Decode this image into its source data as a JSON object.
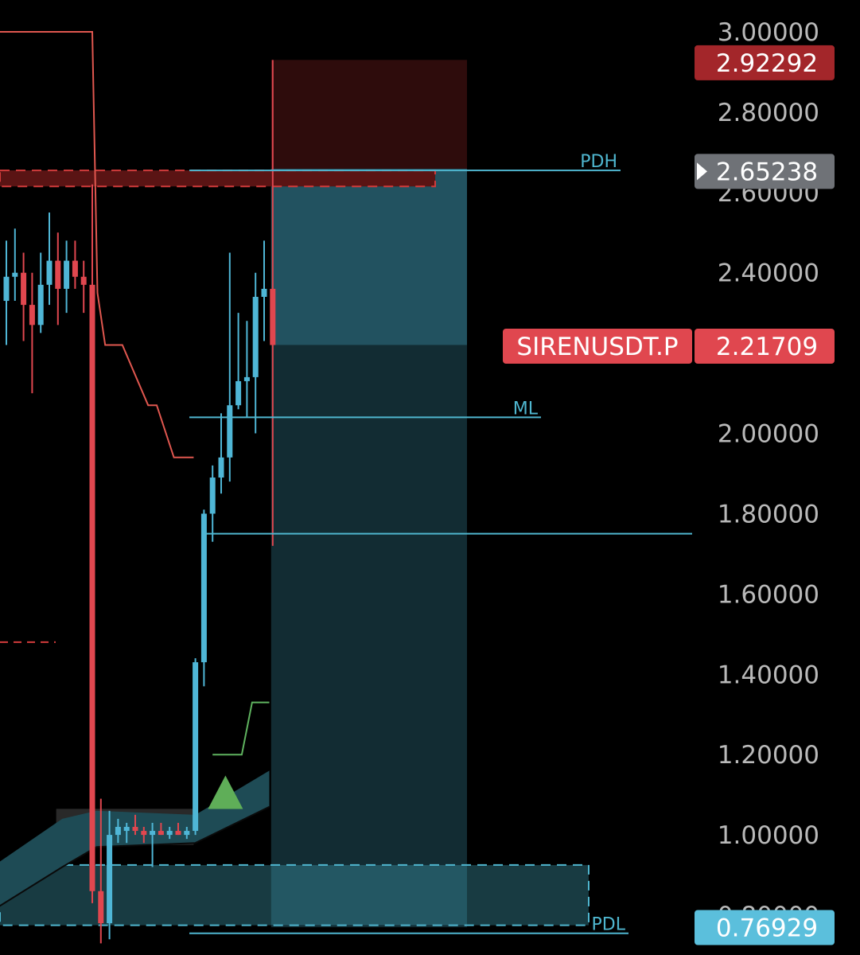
{
  "chart_data": {
    "type": "candlestick",
    "symbol": "SIRENUSDT.P",
    "y_axis": {
      "ticks": [
        "3.00000",
        "2.80000",
        "2.60000",
        "2.40000",
        "2.00000",
        "1.80000",
        "1.60000",
        "1.40000",
        "1.20000",
        "1.00000",
        "0.80000"
      ],
      "range": [
        0.72,
        3.06
      ]
    },
    "price_tags": [
      {
        "label": "2.92292",
        "value": 2.92292,
        "color": "#a3262a"
      },
      {
        "label": "2.65238",
        "value": 2.65238,
        "color": "#6f7277"
      },
      {
        "label": "2.21709",
        "value": 2.21709,
        "color": "#e0474f"
      },
      {
        "label": "0.76929",
        "value": 0.76929,
        "color": "#5bbfdc"
      }
    ],
    "current_symbol_tag": "SIRENUSDT.P",
    "levels": [
      {
        "label": "PDH",
        "value": 2.655
      },
      {
        "label": "ML",
        "value": 2.04
      },
      {
        "label": "PDL",
        "value": 0.755
      }
    ],
    "extra_level": 1.75,
    "position": {
      "entry": 2.22,
      "stop": 2.93,
      "target": 0.77
    },
    "red_zone": {
      "top": 2.655,
      "bottom": 2.615
    },
    "blue_zone": {
      "top": 0.925,
      "bottom": 0.775
    },
    "candles": [
      {
        "o": 2.33,
        "h": 2.48,
        "l": 2.22,
        "c": 2.39
      },
      {
        "o": 2.39,
        "h": 2.51,
        "l": 2.33,
        "c": 2.4
      },
      {
        "o": 2.4,
        "h": 2.45,
        "l": 2.23,
        "c": 2.32
      },
      {
        "o": 2.32,
        "h": 2.4,
        "l": 2.1,
        "c": 2.27
      },
      {
        "o": 2.27,
        "h": 2.45,
        "l": 2.25,
        "c": 2.37
      },
      {
        "o": 2.37,
        "h": 2.55,
        "l": 2.32,
        "c": 2.43
      },
      {
        "o": 2.43,
        "h": 2.5,
        "l": 2.27,
        "c": 2.36
      },
      {
        "o": 2.36,
        "h": 2.48,
        "l": 2.3,
        "c": 2.43
      },
      {
        "o": 2.43,
        "h": 2.48,
        "l": 2.36,
        "c": 2.39
      },
      {
        "o": 2.39,
        "h": 2.43,
        "l": 2.3,
        "c": 2.37
      },
      {
        "o": 2.37,
        "h": 2.62,
        "l": 0.83,
        "c": 0.86
      },
      {
        "o": 0.86,
        "h": 1.09,
        "l": 0.73,
        "c": 0.78
      },
      {
        "o": 0.78,
        "h": 1.06,
        "l": 0.74,
        "c": 1.0
      },
      {
        "o": 1.0,
        "h": 1.04,
        "l": 0.98,
        "c": 1.02
      },
      {
        "o": 1.01,
        "h": 1.03,
        "l": 0.98,
        "c": 1.02
      },
      {
        "o": 1.02,
        "h": 1.05,
        "l": 1.0,
        "c": 1.01
      },
      {
        "o": 1.01,
        "h": 1.02,
        "l": 0.98,
        "c": 1.0
      },
      {
        "o": 1.0,
        "h": 1.03,
        "l": 0.92,
        "c": 1.01
      },
      {
        "o": 1.01,
        "h": 1.03,
        "l": 1.0,
        "c": 1.0
      },
      {
        "o": 1.0,
        "h": 1.02,
        "l": 0.99,
        "c": 1.01
      },
      {
        "o": 1.01,
        "h": 1.03,
        "l": 1.0,
        "c": 1.0
      },
      {
        "o": 1.0,
        "h": 1.02,
        "l": 0.99,
        "c": 1.01
      },
      {
        "o": 1.01,
        "h": 1.44,
        "l": 1.0,
        "c": 1.43
      },
      {
        "o": 1.43,
        "h": 1.81,
        "l": 1.37,
        "c": 1.8
      },
      {
        "o": 1.8,
        "h": 1.92,
        "l": 1.73,
        "c": 1.89
      },
      {
        "o": 1.89,
        "h": 2.05,
        "l": 1.85,
        "c": 1.94
      },
      {
        "o": 1.94,
        "h": 2.45,
        "l": 1.88,
        "c": 2.07
      },
      {
        "o": 2.07,
        "h": 2.3,
        "l": 2.06,
        "c": 2.13
      },
      {
        "o": 2.13,
        "h": 2.28,
        "l": 2.04,
        "c": 2.14
      },
      {
        "o": 2.14,
        "h": 2.4,
        "l": 2.0,
        "c": 2.34
      },
      {
        "o": 2.34,
        "h": 2.48,
        "l": 2.23,
        "c": 2.36
      },
      {
        "o": 2.36,
        "h": 2.93,
        "l": 1.72,
        "c": 2.22
      }
    ],
    "supertrend_red": [
      {
        "i": -1,
        "v": 3.0
      },
      {
        "i": 10,
        "v": 3.0
      },
      {
        "i": 10.6,
        "v": 2.35
      },
      {
        "i": 11.5,
        "v": 2.22
      },
      {
        "i": 13.5,
        "v": 2.22
      },
      {
        "i": 16.5,
        "v": 2.07
      },
      {
        "i": 17.5,
        "v": 2.07
      },
      {
        "i": 19.5,
        "v": 1.94
      },
      {
        "i": 21.8,
        "v": 1.94
      }
    ],
    "green_line": [
      {
        "i": 24.0,
        "v": 1.2
      },
      {
        "i": 27.4,
        "v": 1.2
      },
      {
        "i": 28.6,
        "v": 1.33
      },
      {
        "i": 30.6,
        "v": 1.33
      }
    ],
    "ribbon_top": [
      {
        "i": -1,
        "v": 0.93
      },
      {
        "i": 6.5,
        "v": 1.04
      },
      {
        "i": 10.5,
        "v": 1.06
      },
      {
        "i": 22.0,
        "v": 1.05
      },
      {
        "i": 30.6,
        "v": 1.16
      }
    ],
    "ribbon_bottom": [
      {
        "i": -1,
        "v": 0.82
      },
      {
        "i": 6.5,
        "v": 0.92
      },
      {
        "i": 10.5,
        "v": 0.97
      },
      {
        "i": 22.0,
        "v": 0.98
      },
      {
        "i": 30.6,
        "v": 1.07
      }
    ],
    "buy_signal": {
      "i": 25.5,
      "v": 1.12
    },
    "red_dash_left": {
      "value": 1.48
    }
  }
}
